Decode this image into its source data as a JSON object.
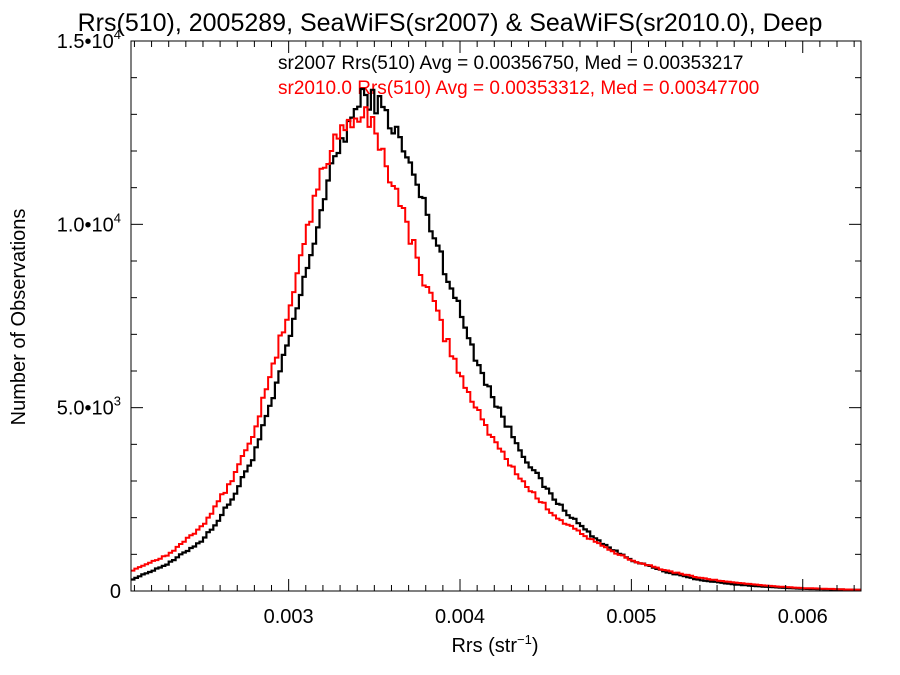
{
  "chart_data": {
    "type": "line",
    "title": "Rrs(510), 2005289, SeaWiFS(sr2007) & SeaWiFS(sr2010.0), Deep",
    "xlabel": "Rrs (str",
    "xlabel_sup": "−1",
    "xlabel_end": ")",
    "ylabel": "Number of Observations",
    "xlim": [
      0.00208,
      0.00634
    ],
    "ylim": [
      0,
      15000
    ],
    "xticks": [
      {
        "value": 0.003,
        "label": "0.003"
      },
      {
        "value": 0.004,
        "label": "0.004"
      },
      {
        "value": 0.005,
        "label": "0.005"
      },
      {
        "value": 0.006,
        "label": "0.006"
      }
    ],
    "yticks": [
      {
        "value": 0,
        "base": "0",
        "exp": ""
      },
      {
        "value": 5000,
        "base": "5.0•10",
        "exp": "3"
      },
      {
        "value": 10000,
        "base": "1.0•10",
        "exp": "4"
      },
      {
        "value": 15000,
        "base": "1.5•10",
        "exp": "4"
      }
    ],
    "grid": false,
    "annotations": [
      {
        "text": "sr2007 Rrs(510) Avg = 0.00356750, Med = 0.00353217",
        "color": "#000000"
      },
      {
        "text": "sr2010.0 Rrs(510) Avg = 0.00353312, Med = 0.00347700",
        "color": "#ff0000"
      }
    ],
    "series": [
      {
        "color": "#000000",
        "bin_width": 2e-05,
        "x": [
          0.00208,
          0.0023,
          0.0025,
          0.0026,
          0.0027,
          0.0028,
          0.0029,
          0.003,
          0.0031,
          0.0032,
          0.0033,
          0.0034,
          0.00345,
          0.0035,
          0.0036,
          0.0037,
          0.0038,
          0.0039,
          0.004,
          0.0041,
          0.0042,
          0.0043,
          0.0044,
          0.0045,
          0.0046,
          0.0047,
          0.0048,
          0.0049,
          0.005,
          0.0052,
          0.0054,
          0.0056,
          0.0058,
          0.006,
          0.00634
        ],
        "y": [
          300,
          750,
          1400,
          2000,
          2750,
          3750,
          5100,
          6800,
          8600,
          10600,
          12200,
          13200,
          13500,
          13400,
          12800,
          11700,
          10400,
          9000,
          7600,
          6300,
          5200,
          4300,
          3500,
          2800,
          2250,
          1800,
          1400,
          1100,
          850,
          520,
          300,
          180,
          110,
          60,
          30
        ]
      },
      {
        "color": "#ff0000",
        "bin_width": 2e-05,
        "x": [
          0.00208,
          0.0023,
          0.0025,
          0.0026,
          0.0027,
          0.0028,
          0.0029,
          0.003,
          0.0031,
          0.0032,
          0.0033,
          0.0034,
          0.00345,
          0.0035,
          0.0036,
          0.0037,
          0.0038,
          0.0039,
          0.004,
          0.0041,
          0.0042,
          0.0043,
          0.0044,
          0.0045,
          0.0046,
          0.0047,
          0.0048,
          0.0049,
          0.005,
          0.0052,
          0.0054,
          0.0056,
          0.0058,
          0.006,
          0.00634
        ],
        "y": [
          550,
          1000,
          1800,
          2500,
          3300,
          4400,
          5900,
          7700,
          9700,
          11500,
          12600,
          13000,
          12900,
          12600,
          11300,
          9800,
          8400,
          7100,
          5900,
          4900,
          4100,
          3400,
          2800,
          2300,
          1900,
          1600,
          1300,
          1050,
          850,
          560,
          360,
          230,
          140,
          80,
          30
        ]
      }
    ]
  }
}
